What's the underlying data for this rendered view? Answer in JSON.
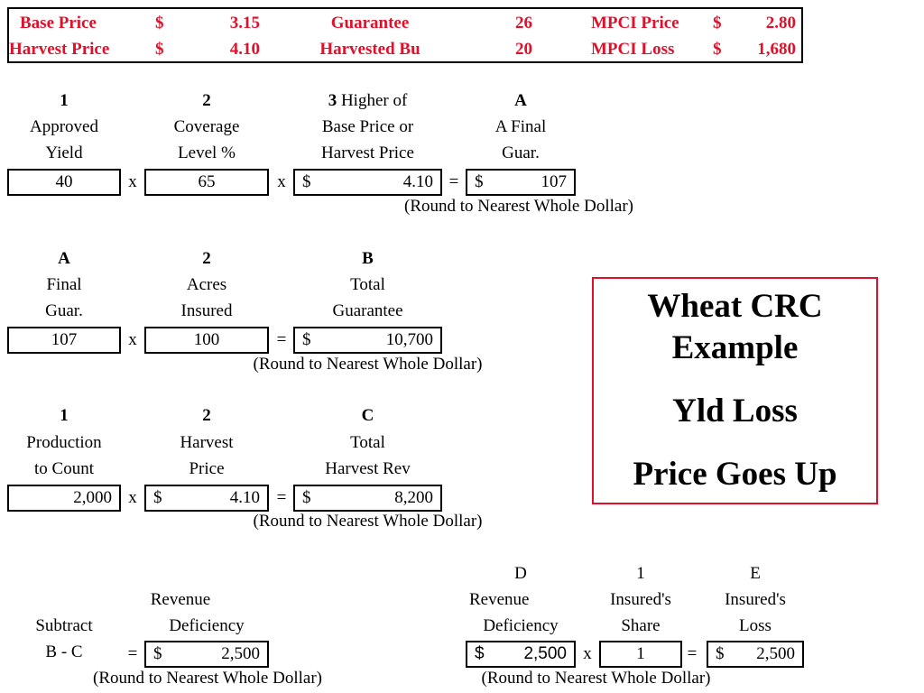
{
  "header": {
    "base_price_label": "Base Price",
    "base_price_cur": "$",
    "base_price_val": "3.15",
    "harvest_price_label": "Harvest Price",
    "harvest_price_cur": "$",
    "harvest_price_val": "4.10",
    "guarantee_label": "Guarantee",
    "guarantee_val": "26",
    "harvested_bu_label": "Harvested Bu",
    "harvested_bu_val": "20",
    "mpci_price_label": "MPCI Price",
    "mpci_price_cur": "$",
    "mpci_price_val": "2.80",
    "mpci_loss_label": "MPCI Loss",
    "mpci_loss_cur": "$",
    "mpci_loss_val": "1,680"
  },
  "step1": {
    "col1": {
      "num": "1",
      "line1": "Approved",
      "line2": "Yield",
      "value": "40"
    },
    "col2": {
      "num": "2",
      "line1": "Coverage",
      "line2": "Level %",
      "value": "65"
    },
    "col3": {
      "num": "3",
      "num_suffix": " Higher of",
      "line1": "Base Price or",
      "line2": "Harvest Price",
      "cur": "$",
      "value": "4.10"
    },
    "col4": {
      "num": "A",
      "line1": "A Final",
      "line2": "Guar.",
      "cur": "$",
      "value": "107"
    },
    "op1": "x",
    "op2": "x",
    "op3": "=",
    "note": "(Round to Nearest Whole Dollar)"
  },
  "step2": {
    "col1": {
      "num": "A",
      "line1": "Final",
      "line2": "Guar.",
      "value": "107"
    },
    "col2": {
      "num": "2",
      "line1": "Acres",
      "line2": "Insured",
      "value": "100"
    },
    "col3": {
      "num": "B",
      "line1": "Total",
      "line2": "Guarantee",
      "cur": "$",
      "value": "10,700"
    },
    "op1": "x",
    "op2": "=",
    "note": "(Round to Nearest Whole Dollar)"
  },
  "step3": {
    "col1": {
      "num": "1",
      "line1": "Production",
      "line2": "to Count",
      "value": "2,000"
    },
    "col2": {
      "num": "2",
      "line1": "Harvest",
      "line2": "Price",
      "cur": "$",
      "value": "4.10"
    },
    "col3": {
      "num": "C",
      "line1": "Total",
      "line2": "Harvest Rev",
      "cur": "$",
      "value": "8,200"
    },
    "op1": "x",
    "op2": "=",
    "note": "(Round to Nearest Whole Dollar)"
  },
  "step4": {
    "left": {
      "line1": "Revenue",
      "line2": "Deficiency",
      "subtract": "Subtract",
      "formula": "B - C",
      "op": "=",
      "cur": "$",
      "value": "2,500",
      "note": "(Round to Nearest Whole Dollar)"
    },
    "d": {
      "num": "D",
      "line1": "Revenue",
      "line2": "Deficiency",
      "cur": "$",
      "value": "2,500"
    },
    "share": {
      "num": "1",
      "line1": "Insured's",
      "line2": "Share",
      "value": "1"
    },
    "e": {
      "num": "E",
      "line1": "Insured's",
      "line2": "Loss",
      "cur": "$",
      "value": "2,500"
    },
    "op1": "x",
    "op2": "=",
    "note": "(Round to Nearest Whole Dollar)"
  },
  "callout": {
    "line1": "Wheat CRC",
    "line2": "Example",
    "line3": "Yld Loss",
    "line4": "Price Goes Up"
  }
}
